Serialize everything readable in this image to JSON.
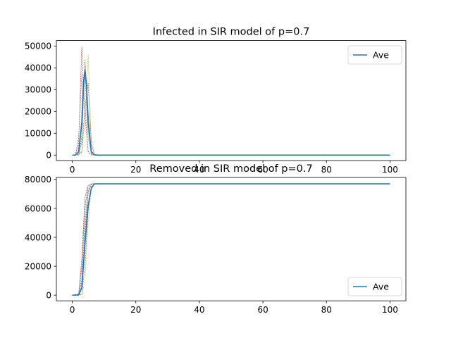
{
  "chart_data": [
    {
      "type": "line",
      "title": "Infected in SIR model of p=0.7",
      "xlabel": "",
      "ylabel": "",
      "xlim": [
        -5,
        105
      ],
      "ylim": [
        -2500,
        52500
      ],
      "xticks": [
        0,
        20,
        40,
        60,
        80,
        100
      ],
      "yticks": [
        0,
        10000,
        20000,
        30000,
        40000,
        50000
      ],
      "grid": false,
      "legend": {
        "entries": [
          "Ave"
        ],
        "placement": "top-right"
      },
      "series": [
        {
          "name": "Ave",
          "style": "solid",
          "color": "#1f77b4",
          "points": [
            [
              0,
              0
            ],
            [
              1,
              10
            ],
            [
              2,
              1500
            ],
            [
              3,
              15000
            ],
            [
              3.5,
              33000
            ],
            [
              4,
              39000
            ],
            [
              4.5,
              32000
            ],
            [
              5,
              15000
            ],
            [
              6,
              1500
            ],
            [
              7,
              100
            ],
            [
              8,
              0
            ],
            [
              100,
              0
            ]
          ]
        },
        {
          "style": "dashed",
          "color": "#d62728",
          "points": [
            [
              0,
              0
            ],
            [
              1,
              50
            ],
            [
              2,
              5000
            ],
            [
              3,
              49500
            ],
            [
              4,
              18000
            ],
            [
              5,
              1500
            ],
            [
              6,
              0
            ],
            [
              100,
              0
            ]
          ]
        },
        {
          "style": "dashed",
          "color": "#bcbd22",
          "points": [
            [
              0,
              0
            ],
            [
              2,
              50
            ],
            [
              3,
              2000
            ],
            [
              4,
              15000
            ],
            [
              4.5,
              28000
            ],
            [
              5,
              46000
            ],
            [
              6,
              6000
            ],
            [
              7,
              300
            ],
            [
              8,
              0
            ],
            [
              100,
              0
            ]
          ]
        },
        {
          "style": "dashed",
          "color": "#ff7f0e",
          "points": [
            [
              0,
              0
            ],
            [
              2,
              200
            ],
            [
              3,
              9000
            ],
            [
              3.5,
              30000
            ],
            [
              4,
              40000
            ],
            [
              5,
              11000
            ],
            [
              6,
              500
            ],
            [
              7,
              0
            ],
            [
              100,
              0
            ]
          ]
        },
        {
          "style": "dashed",
          "color": "#2ca02c",
          "points": [
            [
              0,
              0
            ],
            [
              2,
              100
            ],
            [
              3,
              6000
            ],
            [
              4,
              44000
            ],
            [
              5,
              13000
            ],
            [
              6,
              800
            ],
            [
              7,
              0
            ],
            [
              100,
              0
            ]
          ]
        },
        {
          "style": "dashed",
          "color": "#9467bd",
          "points": [
            [
              0,
              0
            ],
            [
              1,
              100
            ],
            [
              2,
              8000
            ],
            [
              3,
              37000
            ],
            [
              4,
              23000
            ],
            [
              5,
              2000
            ],
            [
              6,
              0
            ],
            [
              100,
              0
            ]
          ]
        },
        {
          "style": "dashed",
          "color": "#e377c2",
          "points": [
            [
              0,
              0
            ],
            [
              2,
              400
            ],
            [
              3,
              12000
            ],
            [
              4,
              38000
            ],
            [
              5,
              19000
            ],
            [
              6,
              1500
            ],
            [
              7,
              0
            ],
            [
              100,
              0
            ]
          ]
        },
        {
          "style": "dashed",
          "color": "#8c564b",
          "points": [
            [
              0,
              0
            ],
            [
              2,
              30
            ],
            [
              3,
              1500
            ],
            [
              4,
              22000
            ],
            [
              5,
              33000
            ],
            [
              6,
              5000
            ],
            [
              7,
              200
            ],
            [
              8,
              0
            ],
            [
              100,
              0
            ]
          ]
        },
        {
          "style": "dashed",
          "color": "#17becf",
          "points": [
            [
              0,
              0
            ],
            [
              2,
              300
            ],
            [
              3,
              15000
            ],
            [
              4,
              36000
            ],
            [
              5,
              8000
            ],
            [
              6,
              300
            ],
            [
              7,
              0
            ],
            [
              100,
              0
            ]
          ]
        },
        {
          "style": "dashed",
          "color": "#7f7f7f",
          "points": [
            [
              0,
              0
            ],
            [
              2,
              200
            ],
            [
              3,
              8000
            ],
            [
              4,
              42000
            ],
            [
              5,
              20000
            ],
            [
              6,
              2000
            ],
            [
              7,
              0
            ],
            [
              100,
              0
            ]
          ]
        }
      ]
    },
    {
      "type": "line",
      "title": "Removed in SIR model of p=0.7",
      "xlabel": "",
      "ylabel": "",
      "xlim": [
        -5,
        105
      ],
      "ylim": [
        -3900,
        81400
      ],
      "xticks": [
        0,
        20,
        40,
        60,
        80,
        100
      ],
      "yticks": [
        0,
        20000,
        40000,
        60000,
        80000
      ],
      "grid": false,
      "legend": {
        "entries": [
          "Ave"
        ],
        "placement": "bottom-right"
      },
      "series": [
        {
          "name": "Ave",
          "style": "solid",
          "color": "#1f77b4",
          "points": [
            [
              0,
              0
            ],
            [
              2,
              100
            ],
            [
              3,
              5000
            ],
            [
              4,
              35000
            ],
            [
              5,
              62000
            ],
            [
              6,
              74000
            ],
            [
              7,
              77000
            ],
            [
              100,
              77000
            ]
          ]
        },
        {
          "style": "dashed",
          "color": "#d62728",
          "points": [
            [
              0,
              0
            ],
            [
              2,
              500
            ],
            [
              3,
              25000
            ],
            [
              4,
              68000
            ],
            [
              5,
              76000
            ],
            [
              6,
              77000
            ],
            [
              100,
              77000
            ]
          ]
        },
        {
          "style": "dashed",
          "color": "#bcbd22",
          "points": [
            [
              0,
              0
            ],
            [
              3,
              200
            ],
            [
              4,
              10000
            ],
            [
              5,
              50000
            ],
            [
              6,
              74000
            ],
            [
              7,
              77000
            ],
            [
              100,
              77000
            ]
          ]
        },
        {
          "style": "dashed",
          "color": "#ff7f0e",
          "points": [
            [
              0,
              0
            ],
            [
              2,
              300
            ],
            [
              3,
              10000
            ],
            [
              4,
              48000
            ],
            [
              5,
              72000
            ],
            [
              6,
              77000
            ],
            [
              100,
              77000
            ]
          ]
        },
        {
          "style": "dashed",
          "color": "#2ca02c",
          "points": [
            [
              0,
              0
            ],
            [
              2,
              200
            ],
            [
              3,
              6000
            ],
            [
              4,
              40000
            ],
            [
              5,
              70000
            ],
            [
              6,
              76500
            ],
            [
              7,
              77000
            ],
            [
              100,
              77000
            ]
          ]
        },
        {
          "style": "dashed",
          "color": "#9467bd",
          "points": [
            [
              0,
              0
            ],
            [
              2,
              1000
            ],
            [
              3,
              20000
            ],
            [
              4,
              60000
            ],
            [
              5,
              75000
            ],
            [
              6,
              77000
            ],
            [
              100,
              77000
            ]
          ]
        },
        {
          "style": "dashed",
          "color": "#e377c2",
          "points": [
            [
              0,
              0
            ],
            [
              2,
              400
            ],
            [
              3,
              12000
            ],
            [
              4,
              52000
            ],
            [
              5,
              73000
            ],
            [
              6,
              77000
            ],
            [
              100,
              77000
            ]
          ]
        },
        {
          "style": "dashed",
          "color": "#8c564b",
          "points": [
            [
              0,
              0
            ],
            [
              3,
              600
            ],
            [
              4,
              20000
            ],
            [
              5,
              58000
            ],
            [
              6,
              75000
            ],
            [
              7,
              77000
            ],
            [
              100,
              77000
            ]
          ]
        },
        {
          "style": "dashed",
          "color": "#17becf",
          "points": [
            [
              0,
              0
            ],
            [
              2,
              600
            ],
            [
              3,
              18000
            ],
            [
              4,
              62000
            ],
            [
              5,
              76000
            ],
            [
              6,
              77000
            ],
            [
              100,
              77000
            ]
          ]
        },
        {
          "style": "dashed",
          "color": "#7f7f7f",
          "points": [
            [
              0,
              0
            ],
            [
              2,
              300
            ],
            [
              3,
              9000
            ],
            [
              4,
              45000
            ],
            [
              5,
              71000
            ],
            [
              6,
              77000
            ],
            [
              100,
              77000
            ]
          ]
        }
      ]
    }
  ]
}
